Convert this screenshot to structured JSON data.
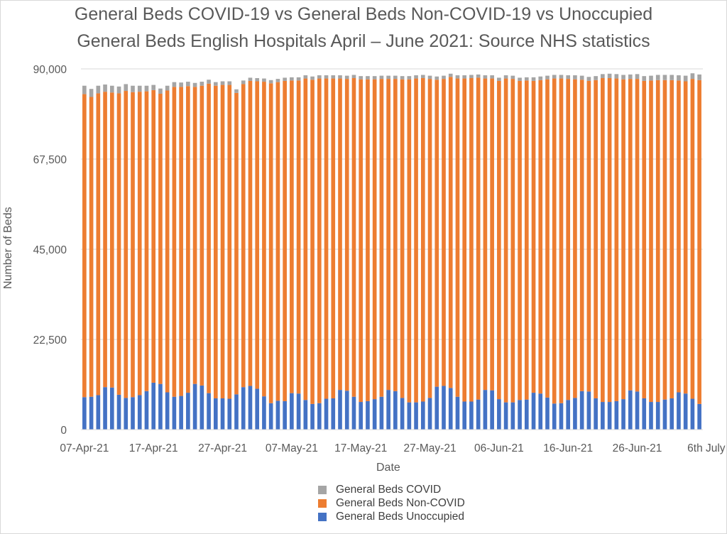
{
  "chart_data": {
    "type": "bar",
    "stacked": true,
    "title_line1": "General Beds COVID-19 vs General Beds Non-COVID-19 vs Unoccupied",
    "title_line2": "General Beds English Hospitals April – June 2021: Source NHS statistics",
    "xlabel": "Date",
    "ylabel": "Number of Beds",
    "ylim": [
      0,
      90000
    ],
    "yticks": [
      "0",
      "22,500",
      "45,000",
      "67,500",
      "90,000"
    ],
    "ytick_values": [
      0,
      22500,
      45000,
      67500,
      90000
    ],
    "xticks": [
      {
        "label": "07-Apr-21",
        "index": 0
      },
      {
        "label": "17-Apr-21",
        "index": 10
      },
      {
        "label": "27-Apr-21",
        "index": 20
      },
      {
        "label": "07-May-21",
        "index": 30
      },
      {
        "label": "17-May-21",
        "index": 40
      },
      {
        "label": "27-May-21",
        "index": 50
      },
      {
        "label": "06-Jun-21",
        "index": 60
      },
      {
        "label": "16-Jun-21",
        "index": 70
      },
      {
        "label": "26-Jun-21",
        "index": 80
      },
      {
        "label": "6th July",
        "index": 90
      }
    ],
    "grid": "horizontal",
    "legend_position": "bottom",
    "colors": {
      "covid": "#a5a5a5",
      "noncovid": "#ed7d31",
      "unoccupied": "#4472c4"
    },
    "legend": [
      "General Beds COVID",
      "General Beds Non-COVID",
      "General Beds Unoccupied"
    ],
    "series": [
      {
        "name": "General Beds Unoccupied",
        "values": [
          8100,
          8200,
          8600,
          10600,
          10500,
          8700,
          7900,
          8100,
          8600,
          9600,
          11700,
          11400,
          9300,
          8200,
          8400,
          9200,
          11400,
          11000,
          9100,
          7800,
          7800,
          7700,
          8800,
          10600,
          10900,
          10200,
          8300,
          6600,
          7200,
          7100,
          9100,
          9000,
          7400,
          6400,
          6600,
          7700,
          7800,
          9900,
          9700,
          8200,
          6900,
          7100,
          7600,
          8200,
          9900,
          9600,
          7900,
          6800,
          6800,
          7000,
          7900,
          10700,
          10900,
          10400,
          8200,
          7000,
          7000,
          7500,
          9900,
          9800,
          7600,
          6800,
          6800,
          7400,
          7500,
          9200,
          9000,
          8000,
          6500,
          6600,
          7400,
          7900,
          9600,
          9500,
          7800,
          6900,
          6900,
          7100,
          7600,
          9800,
          9500,
          7800,
          6900,
          6900,
          7500,
          7800,
          9300,
          9000,
          7700,
          6400
        ]
      },
      {
        "name": "General Beds Non-COVID",
        "values": [
          75600,
          74800,
          75300,
          73700,
          73600,
          75200,
          76600,
          76100,
          75700,
          74800,
          73000,
          72400,
          75300,
          77300,
          77100,
          76500,
          74100,
          74800,
          77200,
          78000,
          78200,
          78300,
          75200,
          75600,
          76100,
          76700,
          78500,
          79800,
          79500,
          79900,
          78000,
          78100,
          80200,
          80900,
          81000,
          79900,
          79800,
          77700,
          77800,
          79500,
          80500,
          80300,
          79800,
          79300,
          77600,
          77900,
          79500,
          80600,
          80800,
          80700,
          79600,
          76600,
          76600,
          77600,
          79400,
          80600,
          80700,
          80300,
          77700,
          77800,
          79400,
          80800,
          80700,
          79600,
          79600,
          77800,
          78200,
          79400,
          81100,
          81000,
          80100,
          79500,
          77700,
          77500,
          79400,
          80800,
          80800,
          80500,
          79800,
          77700,
          78000,
          79200,
          80200,
          80300,
          79700,
          79400,
          77800,
          77900,
          79800,
          80800
        ]
      },
      {
        "name": "General Beds COVID",
        "values": [
          2100,
          2000,
          1900,
          1800,
          1700,
          1700,
          1700,
          1600,
          1500,
          1400,
          1300,
          1300,
          1200,
          1200,
          1100,
          1100,
          1000,
          1000,
          1000,
          900,
          900,
          900,
          900,
          900,
          800,
          800,
          800,
          800,
          800,
          800,
          800,
          800,
          800,
          800,
          800,
          800,
          800,
          800,
          800,
          800,
          800,
          800,
          800,
          800,
          800,
          800,
          800,
          800,
          800,
          800,
          800,
          800,
          800,
          800,
          800,
          800,
          800,
          800,
          800,
          800,
          800,
          800,
          800,
          800,
          800,
          900,
          900,
          900,
          900,
          900,
          900,
          1000,
          1000,
          1000,
          1000,
          1000,
          1100,
          1100,
          1100,
          1100,
          1200,
          1200,
          1200,
          1300,
          1300,
          1300,
          1300,
          1400,
          1400,
          1400
        ]
      }
    ]
  }
}
